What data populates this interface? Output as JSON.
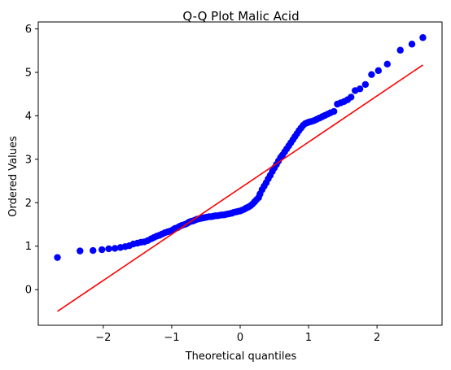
{
  "chart_data": {
    "type": "scatter",
    "title": "Q-Q Plot Malic Acid",
    "xlabel": "Theoretical quantiles",
    "ylabel": "Ordered Values",
    "xlim": [
      -2.95,
      2.95
    ],
    "ylim": [
      -0.82,
      6.16
    ],
    "xticks": [
      -2,
      -1,
      0,
      1,
      2
    ],
    "yticks": [
      0,
      1,
      2,
      3,
      4,
      5,
      6
    ],
    "grid": false,
    "point_color": "#0000ff",
    "line_color": "#ff0000",
    "fit_line": {
      "x": [
        -2.67,
        2.67
      ],
      "y": [
        -0.5,
        5.17
      ]
    },
    "points": [
      [
        -2.67,
        0.74
      ],
      [
        -2.34,
        0.89
      ],
      [
        -2.15,
        0.9
      ],
      [
        -2.02,
        0.92
      ],
      [
        -1.92,
        0.94
      ],
      [
        -1.83,
        0.95
      ],
      [
        -1.75,
        0.97
      ],
      [
        -1.68,
        0.99
      ],
      [
        -1.62,
        1.01
      ],
      [
        -1.56,
        1.05
      ],
      [
        -1.5,
        1.07
      ],
      [
        -1.45,
        1.09
      ],
      [
        -1.4,
        1.1
      ],
      [
        -1.35,
        1.13
      ],
      [
        -1.3,
        1.17
      ],
      [
        -1.26,
        1.2
      ],
      [
        -1.22,
        1.23
      ],
      [
        -1.18,
        1.25
      ],
      [
        -1.14,
        1.28
      ],
      [
        -1.1,
        1.31
      ],
      [
        -1.06,
        1.33
      ],
      [
        -1.02,
        1.35
      ],
      [
        -0.98,
        1.38
      ],
      [
        -0.95,
        1.41
      ],
      [
        -0.91,
        1.43
      ],
      [
        -0.88,
        1.46
      ],
      [
        -0.85,
        1.48
      ],
      [
        -0.81,
        1.5
      ],
      [
        -0.78,
        1.52
      ],
      [
        -0.75,
        1.55
      ],
      [
        -0.72,
        1.57
      ],
      [
        -0.69,
        1.58
      ],
      [
        -0.66,
        1.6
      ],
      [
        -0.63,
        1.62
      ],
      [
        -0.6,
        1.63
      ],
      [
        -0.57,
        1.64
      ],
      [
        -0.54,
        1.65
      ],
      [
        -0.51,
        1.66
      ],
      [
        -0.48,
        1.67
      ],
      [
        -0.45,
        1.68
      ],
      [
        -0.42,
        1.68
      ],
      [
        -0.39,
        1.69
      ],
      [
        -0.36,
        1.7
      ],
      [
        -0.33,
        1.7
      ],
      [
        -0.3,
        1.71
      ],
      [
        -0.27,
        1.72
      ],
      [
        -0.24,
        1.72
      ],
      [
        -0.21,
        1.73
      ],
      [
        -0.18,
        1.74
      ],
      [
        -0.15,
        1.75
      ],
      [
        -0.12,
        1.76
      ],
      [
        -0.09,
        1.78
      ],
      [
        -0.06,
        1.79
      ],
      [
        -0.03,
        1.8
      ],
      [
        0.0,
        1.81
      ],
      [
        0.03,
        1.83
      ],
      [
        0.06,
        1.85
      ],
      [
        0.09,
        1.88
      ],
      [
        0.12,
        1.9
      ],
      [
        0.15,
        1.93
      ],
      [
        0.18,
        1.97
      ],
      [
        0.21,
        2.02
      ],
      [
        0.24,
        2.07
      ],
      [
        0.27,
        2.12
      ],
      [
        0.29,
        2.2
      ],
      [
        0.32,
        2.3
      ],
      [
        0.35,
        2.38
      ],
      [
        0.38,
        2.46
      ],
      [
        0.41,
        2.55
      ],
      [
        0.44,
        2.63
      ],
      [
        0.47,
        2.72
      ],
      [
        0.5,
        2.8
      ],
      [
        0.53,
        2.88
      ],
      [
        0.56,
        2.96
      ],
      [
        0.59,
        3.04
      ],
      [
        0.62,
        3.1
      ],
      [
        0.65,
        3.17
      ],
      [
        0.68,
        3.24
      ],
      [
        0.71,
        3.31
      ],
      [
        0.74,
        3.38
      ],
      [
        0.77,
        3.45
      ],
      [
        0.8,
        3.52
      ],
      [
        0.83,
        3.59
      ],
      [
        0.86,
        3.66
      ],
      [
        0.89,
        3.72
      ],
      [
        0.92,
        3.78
      ],
      [
        0.95,
        3.82
      ],
      [
        0.98,
        3.84
      ],
      [
        1.01,
        3.86
      ],
      [
        1.04,
        3.87
      ],
      [
        1.08,
        3.89
      ],
      [
        1.12,
        3.92
      ],
      [
        1.16,
        3.95
      ],
      [
        1.2,
        3.98
      ],
      [
        1.24,
        4.01
      ],
      [
        1.28,
        4.04
      ],
      [
        1.32,
        4.07
      ],
      [
        1.37,
        4.1
      ],
      [
        1.42,
        4.27
      ],
      [
        1.47,
        4.3
      ],
      [
        1.52,
        4.33
      ],
      [
        1.57,
        4.37
      ],
      [
        1.62,
        4.43
      ],
      [
        1.68,
        4.58
      ],
      [
        1.75,
        4.62
      ],
      [
        1.83,
        4.72
      ],
      [
        1.92,
        4.95
      ],
      [
        2.02,
        5.04
      ],
      [
        2.15,
        5.19
      ],
      [
        2.34,
        5.51
      ],
      [
        2.51,
        5.65
      ],
      [
        2.67,
        5.8
      ]
    ]
  }
}
